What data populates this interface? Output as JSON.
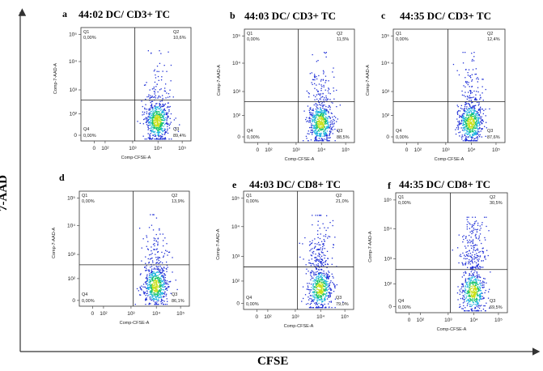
{
  "axis_labels": {
    "y": "7-AAD",
    "x": "CFSE"
  },
  "chart_data": [
    {
      "type": "scatter",
      "panel": "a",
      "title": "44:02 DC/ CD3+ TC",
      "xlabel": "Comp-CFSE-A",
      "ylabel": "Comp-7-AAD-A",
      "x_ticks": [
        "0",
        "10²",
        "10³",
        "10⁴",
        "10⁵"
      ],
      "y_ticks": [
        "0",
        "10²",
        "10³",
        "10⁴",
        "10⁵"
      ],
      "quadrants": [
        {
          "name": "Q1",
          "value": "0,00%"
        },
        {
          "name": "Q2",
          "value": "10,6%"
        },
        {
          "name": "Q3",
          "value": "89,4%"
        },
        {
          "name": "Q4",
          "value": "0,00%"
        }
      ]
    },
    {
      "type": "scatter",
      "panel": "b",
      "title": "44:03 DC/ CD3+ TC",
      "xlabel": "Comp-CFSE-A",
      "ylabel": "Comp-7-AAD-A",
      "x_ticks": [
        "0",
        "10²",
        "10³",
        "10⁴",
        "10⁵"
      ],
      "y_ticks": [
        "0",
        "10²",
        "10³",
        "10⁴",
        "10⁵"
      ],
      "quadrants": [
        {
          "name": "Q1",
          "value": "0,00%"
        },
        {
          "name": "Q2",
          "value": "11,5%"
        },
        {
          "name": "Q3",
          "value": "88,5%"
        },
        {
          "name": "Q4",
          "value": "0,00%"
        }
      ]
    },
    {
      "type": "scatter",
      "panel": "c",
      "title": "44:35 DC/ CD3+ TC",
      "xlabel": "Comp-CFSE-A",
      "ylabel": "Comp-7-AAD-A",
      "x_ticks": [
        "0",
        "10²",
        "10³",
        "10⁴",
        "10⁵"
      ],
      "y_ticks": [
        "0",
        "10²",
        "10³",
        "10⁴",
        "10⁵"
      ],
      "quadrants": [
        {
          "name": "Q1",
          "value": "0,00%"
        },
        {
          "name": "Q2",
          "value": "12,4%"
        },
        {
          "name": "Q3",
          "value": "87,6%"
        },
        {
          "name": "Q4",
          "value": "0,00%"
        }
      ]
    },
    {
      "type": "scatter",
      "panel": "d",
      "title": "",
      "xlabel": "Comp-CFSE-A",
      "ylabel": "Comp-7-AAD-A",
      "x_ticks": [
        "0",
        "10²",
        "10³",
        "10⁴",
        "10⁵"
      ],
      "y_ticks": [
        "0",
        "10²",
        "10³",
        "10⁴",
        "10⁵"
      ],
      "quadrants": [
        {
          "name": "Q1",
          "value": "0,00%"
        },
        {
          "name": "Q2",
          "value": "13,9%"
        },
        {
          "name": "Q3",
          "value": "86,1%"
        },
        {
          "name": "Q4",
          "value": "0,00%"
        }
      ]
    },
    {
      "type": "scatter",
      "panel": "e",
      "title": "44:03 DC/ CD8+ TC",
      "xlabel": "Comp-CFSE-A",
      "ylabel": "Comp-7-AAD-A",
      "x_ticks": [
        "0",
        "10²",
        "10³",
        "10⁴",
        "10⁵"
      ],
      "y_ticks": [
        "0",
        "10²",
        "10³",
        "10⁴",
        "10⁵"
      ],
      "quadrants": [
        {
          "name": "Q1",
          "value": "0,00%"
        },
        {
          "name": "Q2",
          "value": "21,0%"
        },
        {
          "name": "Q3",
          "value": "79,0%"
        },
        {
          "name": "Q4",
          "value": "0,00%"
        }
      ]
    },
    {
      "type": "scatter",
      "panel": "f",
      "title": "44:35 DC/ CD8+ TC",
      "xlabel": "Comp-CFSE-A",
      "ylabel": "Comp-7-AAD-A",
      "x_ticks": [
        "0",
        "10²",
        "10³",
        "10⁴",
        "10⁵"
      ],
      "y_ticks": [
        "0",
        "10²",
        "10³",
        "10⁴",
        "10⁵"
      ],
      "quadrants": [
        {
          "name": "Q1",
          "value": "0,00%"
        },
        {
          "name": "Q2",
          "value": "30,5%"
        },
        {
          "name": "Q3",
          "value": "69,5%"
        },
        {
          "name": "Q4",
          "value": "0,00%"
        }
      ]
    }
  ]
}
